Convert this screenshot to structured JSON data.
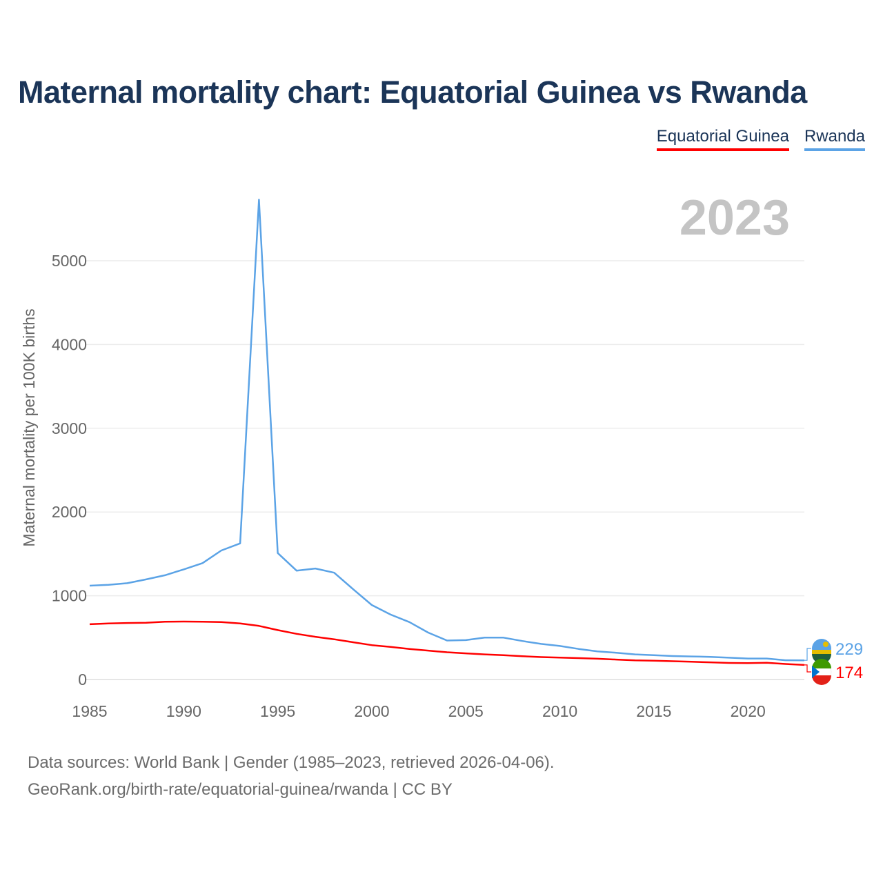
{
  "title": "Maternal mortality chart: Equatorial Guinea vs Rwanda",
  "year_label": "2023",
  "footer": {
    "line1": "Data sources: World Bank | Gender (1985–2023, retrieved 2026-04-06).",
    "line2": "GeoRank.org/birth-rate/equatorial-guinea/rwanda | CC BY"
  },
  "legend": [
    {
      "name": "Equatorial Guinea",
      "color": "#ff0000"
    },
    {
      "name": "Rwanda",
      "color": "#5ba3e6"
    }
  ],
  "chart_data": {
    "type": "line",
    "title": "Maternal mortality chart: Equatorial Guinea vs Rwanda",
    "xlabel": "",
    "ylabel": "Maternal mortality per 100K births",
    "xlim": [
      1985,
      2023
    ],
    "ylim": [
      0,
      5000
    ],
    "x_ticks": [
      1985,
      1990,
      1995,
      2000,
      2005,
      2010,
      2015,
      2020
    ],
    "y_ticks": [
      0,
      1000,
      2000,
      3000,
      4000,
      5000
    ],
    "grid": true,
    "x": [
      1985,
      1986,
      1987,
      1988,
      1989,
      1990,
      1991,
      1992,
      1993,
      1994,
      1995,
      1996,
      1997,
      1998,
      1999,
      2000,
      2001,
      2002,
      2003,
      2004,
      2005,
      2006,
      2007,
      2008,
      2009,
      2010,
      2011,
      2012,
      2013,
      2014,
      2015,
      2016,
      2017,
      2018,
      2019,
      2020,
      2021,
      2022,
      2023
    ],
    "series": [
      {
        "name": "Rwanda",
        "color": "#5ba3e6",
        "end_label": "229",
        "values": [
          1120,
          1130,
          1150,
          1195,
          1245,
          1315,
          1390,
          1540,
          1625,
          5730,
          1510,
          1300,
          1325,
          1275,
          1080,
          890,
          775,
          685,
          560,
          465,
          470,
          500,
          500,
          460,
          425,
          400,
          365,
          335,
          320,
          300,
          290,
          280,
          275,
          270,
          260,
          250,
          250,
          230,
          229
        ]
      },
      {
        "name": "Equatorial Guinea",
        "color": "#ff0000",
        "end_label": "174",
        "values": [
          660,
          670,
          675,
          678,
          690,
          692,
          690,
          685,
          670,
          640,
          590,
          545,
          510,
          480,
          445,
          410,
          390,
          365,
          345,
          325,
          312,
          300,
          290,
          278,
          268,
          262,
          255,
          248,
          238,
          228,
          224,
          218,
          212,
          205,
          198,
          195,
          200,
          185,
          174
        ]
      }
    ]
  }
}
